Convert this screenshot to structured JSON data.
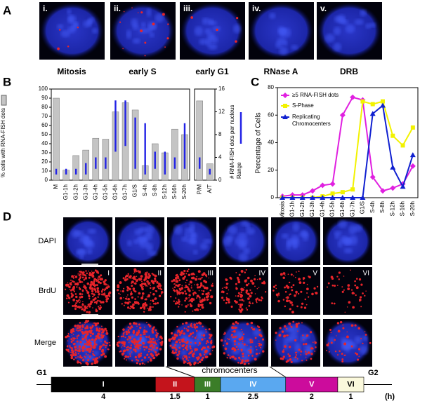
{
  "panel_labels": [
    "A",
    "B",
    "C",
    "D"
  ],
  "panel_a": {
    "images": [
      {
        "label": "i.",
        "caption": "Mitosis"
      },
      {
        "label": "ii.",
        "caption": "early S"
      },
      {
        "label": "iii.",
        "caption": "early G1"
      },
      {
        "label": "iv.",
        "caption": "RNase A"
      },
      {
        "label": "v.",
        "caption": "DRB"
      }
    ]
  },
  "chart_data": [
    {
      "type": "bar",
      "y_label": "% cells with RNA-FISH dots",
      "y2_label": "# RNA-FISH dots per nucleus",
      "categories": [
        "M",
        "G1-1h",
        "G1-2h",
        "G1-3h",
        "G1-4h",
        "G1-5h",
        "G1-6h",
        "G1-7h",
        "G1/S",
        "S-4h",
        "S-8h",
        "S-12h",
        "S-16h",
        "S-20h",
        "P/M",
        "A/T"
      ],
      "ylim": [
        0,
        100
      ],
      "yticks": [
        0,
        10,
        20,
        30,
        40,
        50,
        60,
        70,
        80,
        90,
        100
      ],
      "y2lim": [
        0,
        16
      ],
      "y2ticks": [
        0,
        4,
        8,
        12,
        16
      ],
      "series": [
        {
          "color": "#c4c4c4",
          "values": [
            90,
            11,
            27,
            33,
            46,
            45,
            75,
            85,
            77,
            16,
            40,
            30,
            56,
            50,
            87,
            18
          ]
        },
        {
          "name": "Range",
          "color": "#2323e6",
          "axis": "y2",
          "low": [
            1,
            1,
            1,
            1,
            2,
            2,
            5,
            6,
            2,
            1,
            2,
            1,
            2,
            2,
            2,
            1
          ],
          "high": [
            2,
            2,
            2,
            3,
            4,
            4,
            14,
            14,
            11,
            10,
            5,
            5,
            4,
            10,
            4,
            2
          ]
        }
      ]
    },
    {
      "type": "line",
      "y_label": "Percentage of Cells",
      "categories": [
        "Mitosis",
        "G1-1h",
        "G1-2h",
        "G1-3h",
        "G1-4h",
        "G1-5h",
        "G1-6h",
        "G1-7h",
        "G1/S",
        "S-4h",
        "S-8h",
        "S-12h",
        "S-16h",
        "S-20h"
      ],
      "ylim": [
        0,
        80
      ],
      "yticks": [
        0,
        20,
        40,
        60,
        80
      ],
      "series": [
        {
          "name": "≥5 RNA-FISH dots",
          "color": "#e020e0",
          "marker": "diamond",
          "values": [
            1,
            2,
            2,
            5,
            9,
            10,
            60,
            73,
            71,
            15,
            5,
            7,
            10,
            23
          ]
        },
        {
          "name": "S-Phase",
          "color": "#f2f200",
          "marker": "square",
          "values": [
            0,
            0,
            0,
            0,
            1,
            3,
            4,
            6,
            70,
            68,
            70,
            45,
            38,
            51
          ]
        },
        {
          "name": "Replicating Chromocenters",
          "color": "#1020d0",
          "marker": "triangle",
          "values": [
            0,
            0,
            0,
            0,
            0,
            0,
            0,
            0,
            0,
            61,
            67,
            22,
            8,
            31
          ]
        }
      ]
    }
  ],
  "panel_d": {
    "rows": [
      "DAPI",
      "BrdU",
      "Merge"
    ],
    "columns": [
      "I",
      "II",
      "III",
      "IV",
      "V",
      "VI"
    ]
  },
  "timeline": {
    "start": "G1",
    "end": "G2",
    "note": "chromocenters",
    "unit": "(h)",
    "stages": [
      {
        "name": "I",
        "duration": 4,
        "color": "#000000"
      },
      {
        "name": "II",
        "duration": 1.5,
        "color": "#c4141c"
      },
      {
        "name": "III",
        "duration": 1,
        "color": "#3b7d28"
      },
      {
        "name": "IV",
        "duration": 2.5,
        "color": "#5aa8f0"
      },
      {
        "name": "V",
        "duration": 2,
        "color": "#cc0c9c"
      },
      {
        "name": "VI",
        "duration": 1,
        "color": "#fbf9dc"
      }
    ]
  }
}
